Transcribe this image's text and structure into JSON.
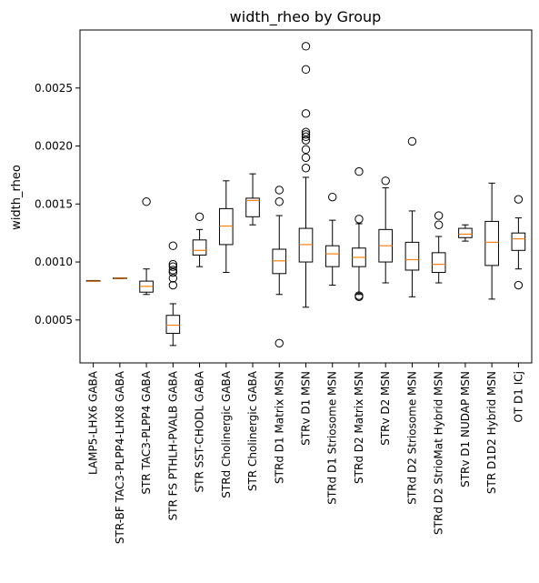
{
  "chart_data": {
    "type": "box",
    "title": "width_rheo by Group",
    "xlabel": "",
    "ylabel": "width_rheo",
    "ylim": [
      0.00013,
      0.003
    ],
    "yticks": [
      0.0005,
      0.001,
      0.0015,
      0.002,
      0.0025
    ],
    "ytick_labels": [
      "0.0005",
      "0.0010",
      "0.0015",
      "0.0020",
      "0.0025"
    ],
    "grid": false,
    "legend": "none",
    "colors": {
      "box": "#000000",
      "median": "#ff7f0e",
      "background": "#ffffff"
    },
    "groups": [
      {
        "label": "LAMP5-LHX6 GABA",
        "whislo": 0.000835,
        "q1": 0.000835,
        "med": 0.000835,
        "q3": 0.00084,
        "whishi": 0.00084,
        "fliers": []
      },
      {
        "label": "STR-BF TAC3-PLPP4-LHX8 GABA",
        "whislo": 0.000858,
        "q1": 0.000858,
        "med": 0.00086,
        "q3": 0.000863,
        "whishi": 0.000863,
        "fliers": []
      },
      {
        "label": "STR TAC3-PLPP4 GABA",
        "whislo": 0.00072,
        "q1": 0.00074,
        "med": 0.00079,
        "q3": 0.000835,
        "whishi": 0.00094,
        "fliers": [
          0.00152
        ]
      },
      {
        "label": "STR FS PTHLH-PVALB GABA",
        "whislo": 0.00028,
        "q1": 0.000385,
        "med": 0.000455,
        "q3": 0.00054,
        "whishi": 0.00064,
        "fliers": [
          0.0008,
          0.00086,
          0.00091,
          0.00093,
          0.00096,
          0.00098,
          0.00114
        ]
      },
      {
        "label": "STR SST-CHODL GABA",
        "whislo": 0.00096,
        "q1": 0.00106,
        "med": 0.0011,
        "q3": 0.00119,
        "whishi": 0.00128,
        "fliers": [
          0.00139
        ]
      },
      {
        "label": "STRd Cholinergic GABA",
        "whislo": 0.00091,
        "q1": 0.00115,
        "med": 0.00131,
        "q3": 0.00146,
        "whishi": 0.0017,
        "fliers": []
      },
      {
        "label": "STR Cholinergic GABA",
        "whislo": 0.00132,
        "q1": 0.00139,
        "med": 0.00153,
        "q3": 0.00155,
        "whishi": 0.00176,
        "fliers": []
      },
      {
        "label": "STRd D1 Matrix MSN",
        "whislo": 0.00072,
        "q1": 0.0009,
        "med": 0.00101,
        "q3": 0.00111,
        "whishi": 0.0014,
        "fliers": [
          0.00152,
          0.00162,
          0.0003
        ]
      },
      {
        "label": "STRv D1 MSN",
        "whislo": 0.00061,
        "q1": 0.001,
        "med": 0.00115,
        "q3": 0.00129,
        "whishi": 0.00173,
        "fliers": [
          0.00181,
          0.0019,
          0.00197,
          0.00205,
          0.00208,
          0.0021,
          0.00212,
          0.00228,
          0.00266,
          0.00286
        ]
      },
      {
        "label": "STRd D1 Striosome MSN",
        "whislo": 0.0008,
        "q1": 0.00096,
        "med": 0.00107,
        "q3": 0.00114,
        "whishi": 0.00136,
        "fliers": [
          0.00156
        ]
      },
      {
        "label": "STRd D2 Matrix MSN",
        "whislo": 0.00072,
        "q1": 0.00096,
        "med": 0.00104,
        "q3": 0.00112,
        "whishi": 0.00133,
        "fliers": [
          0.00137,
          0.00178,
          0.00071,
          0.0007
        ]
      },
      {
        "label": "STRv D2 MSN",
        "whislo": 0.00082,
        "q1": 0.001,
        "med": 0.00114,
        "q3": 0.00128,
        "whishi": 0.00164,
        "fliers": [
          0.0017
        ]
      },
      {
        "label": "STRd D2 Striosome MSN",
        "whislo": 0.0007,
        "q1": 0.00093,
        "med": 0.00102,
        "q3": 0.00117,
        "whishi": 0.00144,
        "fliers": [
          0.00204
        ]
      },
      {
        "label": "STRd D2 StrioMat Hybrid MSN",
        "whislo": 0.00082,
        "q1": 0.00091,
        "med": 0.00098,
        "q3": 0.00108,
        "whishi": 0.00122,
        "fliers": [
          0.00132,
          0.0014
        ]
      },
      {
        "label": "STRv D1 NUDAP MSN",
        "whislo": 0.00118,
        "q1": 0.00121,
        "med": 0.00124,
        "q3": 0.00129,
        "whishi": 0.00132,
        "fliers": []
      },
      {
        "label": "STR D1D2 Hybrid MSN",
        "whislo": 0.00068,
        "q1": 0.00097,
        "med": 0.00117,
        "q3": 0.00135,
        "whishi": 0.00168,
        "fliers": []
      },
      {
        "label": "OT D1 ICj",
        "whislo": 0.00094,
        "q1": 0.0011,
        "med": 0.0012,
        "q3": 0.00125,
        "whishi": 0.00138,
        "fliers": [
          0.00154,
          0.0008
        ]
      }
    ]
  }
}
